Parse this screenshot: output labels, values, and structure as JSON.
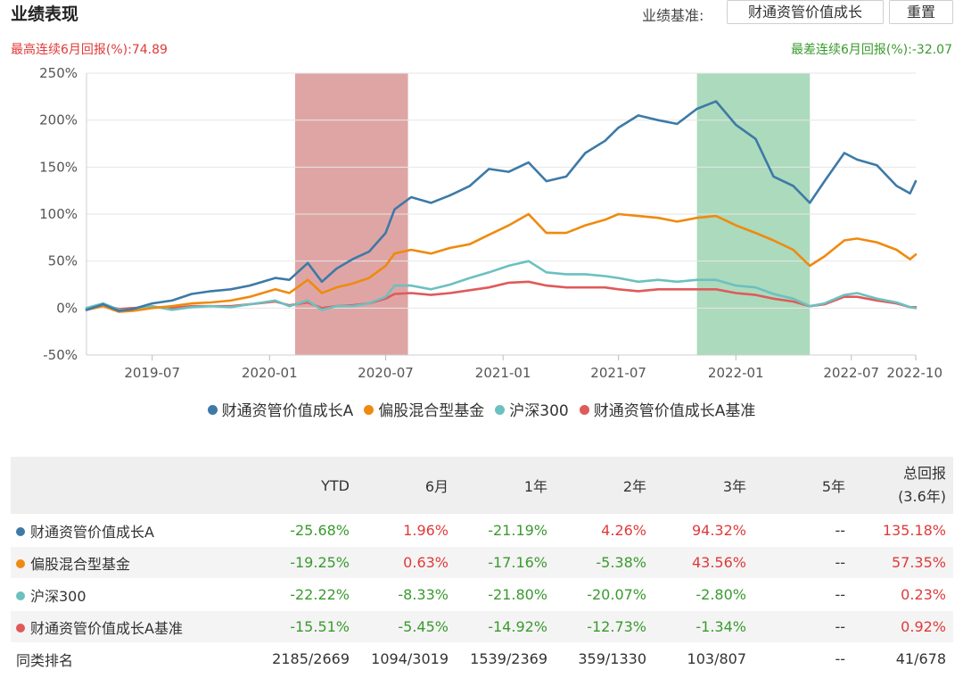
{
  "header": {
    "title": "业绩表现",
    "benchmark_label": "业绩基准:",
    "benchmark_button": "财通资管价值成长",
    "reset_button": "重置",
    "max_streak": "最高连续6月回报(%):74.89",
    "min_streak": "最差连续6月回报(%):-32.07"
  },
  "colors": {
    "fund": "#3d7aa6",
    "mixed": "#ef8a0f",
    "hs300": "#6cc0c0",
    "bench": "#e05a5a",
    "max_band": "#dda0a0",
    "min_band": "#a8d8b8"
  },
  "chart_data": {
    "type": "line",
    "xlim": [
      "2019-03-20",
      "2022-10-10"
    ],
    "x_ticks": [
      {
        "date": "2019-07-01",
        "label": "2019-07"
      },
      {
        "date": "2020-01-01",
        "label": "2020-01"
      },
      {
        "date": "2020-07-01",
        "label": "2020-07"
      },
      {
        "date": "2021-01-01",
        "label": "2021-01"
      },
      {
        "date": "2021-07-01",
        "label": "2021-07"
      },
      {
        "date": "2022-01-01",
        "label": "2022-01"
      },
      {
        "date": "2022-07-01",
        "label": "2022-07"
      },
      {
        "date": "2022-10-10",
        "label": "2022-10"
      }
    ],
    "ylim": [
      -50,
      250
    ],
    "y_ticks": [
      -50,
      0,
      50,
      100,
      150,
      200,
      250
    ],
    "y_tick_labels": [
      "-50%",
      "0%",
      "50%",
      "100%",
      "150%",
      "200%",
      "250%"
    ],
    "grid": "horizontal",
    "legend_position": "bottom",
    "bands": [
      {
        "from": "2020-02-10",
        "to": "2020-08-05",
        "type": "max"
      },
      {
        "from": "2021-11-01",
        "to": "2022-04-27",
        "type": "min"
      }
    ],
    "series": [
      {
        "name": "财通资管价值成长A",
        "color_key": "fund",
        "points": [
          [
            "2019-03-20",
            -2
          ],
          [
            "2019-04-15",
            4
          ],
          [
            "2019-05-10",
            -3
          ],
          [
            "2019-06-01",
            -1
          ],
          [
            "2019-07-01",
            5
          ],
          [
            "2019-08-01",
            8
          ],
          [
            "2019-09-01",
            15
          ],
          [
            "2019-10-01",
            18
          ],
          [
            "2019-11-01",
            20
          ],
          [
            "2019-12-01",
            24
          ],
          [
            "2020-01-10",
            32
          ],
          [
            "2020-02-01",
            30
          ],
          [
            "2020-03-01",
            48
          ],
          [
            "2020-03-23",
            28
          ],
          [
            "2020-04-15",
            42
          ],
          [
            "2020-05-10",
            52
          ],
          [
            "2020-06-05",
            60
          ],
          [
            "2020-07-01",
            80
          ],
          [
            "2020-07-15",
            105
          ],
          [
            "2020-08-10",
            118
          ],
          [
            "2020-09-10",
            112
          ],
          [
            "2020-10-10",
            120
          ],
          [
            "2020-11-10",
            130
          ],
          [
            "2020-12-10",
            148
          ],
          [
            "2021-01-10",
            145
          ],
          [
            "2021-02-10",
            155
          ],
          [
            "2021-03-10",
            135
          ],
          [
            "2021-04-10",
            140
          ],
          [
            "2021-05-10",
            165
          ],
          [
            "2021-06-10",
            178
          ],
          [
            "2021-07-01",
            192
          ],
          [
            "2021-08-01",
            205
          ],
          [
            "2021-09-01",
            200
          ],
          [
            "2021-10-01",
            196
          ],
          [
            "2021-11-01",
            212
          ],
          [
            "2021-12-01",
            220
          ],
          [
            "2022-01-01",
            195
          ],
          [
            "2022-02-01",
            180
          ],
          [
            "2022-03-01",
            140
          ],
          [
            "2022-04-01",
            130
          ],
          [
            "2022-04-27",
            112
          ],
          [
            "2022-05-20",
            135
          ],
          [
            "2022-06-20",
            165
          ],
          [
            "2022-07-10",
            158
          ],
          [
            "2022-08-10",
            152
          ],
          [
            "2022-09-10",
            130
          ],
          [
            "2022-10-01",
            122
          ],
          [
            "2022-10-10",
            135
          ]
        ]
      },
      {
        "name": "偏股混合型基金",
        "color_key": "mixed",
        "points": [
          [
            "2019-03-20",
            -2
          ],
          [
            "2019-04-15",
            2
          ],
          [
            "2019-05-10",
            -4
          ],
          [
            "2019-06-01",
            -3
          ],
          [
            "2019-07-01",
            0
          ],
          [
            "2019-08-01",
            2
          ],
          [
            "2019-09-01",
            5
          ],
          [
            "2019-10-01",
            6
          ],
          [
            "2019-11-01",
            8
          ],
          [
            "2019-12-01",
            12
          ],
          [
            "2020-01-10",
            20
          ],
          [
            "2020-02-01",
            16
          ],
          [
            "2020-03-01",
            30
          ],
          [
            "2020-03-23",
            16
          ],
          [
            "2020-04-15",
            22
          ],
          [
            "2020-05-10",
            26
          ],
          [
            "2020-06-05",
            32
          ],
          [
            "2020-07-01",
            45
          ],
          [
            "2020-07-15",
            58
          ],
          [
            "2020-08-10",
            62
          ],
          [
            "2020-09-10",
            58
          ],
          [
            "2020-10-10",
            64
          ],
          [
            "2020-11-10",
            68
          ],
          [
            "2020-12-10",
            78
          ],
          [
            "2021-01-10",
            88
          ],
          [
            "2021-02-10",
            100
          ],
          [
            "2021-03-10",
            80
          ],
          [
            "2021-04-10",
            80
          ],
          [
            "2021-05-10",
            88
          ],
          [
            "2021-06-10",
            94
          ],
          [
            "2021-07-01",
            100
          ],
          [
            "2021-08-01",
            98
          ],
          [
            "2021-09-01",
            96
          ],
          [
            "2021-10-01",
            92
          ],
          [
            "2021-11-01",
            96
          ],
          [
            "2021-12-01",
            98
          ],
          [
            "2022-01-01",
            88
          ],
          [
            "2022-02-01",
            80
          ],
          [
            "2022-03-01",
            72
          ],
          [
            "2022-04-01",
            62
          ],
          [
            "2022-04-27",
            45
          ],
          [
            "2022-05-20",
            55
          ],
          [
            "2022-06-20",
            72
          ],
          [
            "2022-07-10",
            74
          ],
          [
            "2022-08-10",
            70
          ],
          [
            "2022-09-10",
            62
          ],
          [
            "2022-10-01",
            52
          ],
          [
            "2022-10-10",
            57
          ]
        ]
      },
      {
        "name": "沪深300",
        "color_key": "hs300",
        "points": [
          [
            "2019-03-20",
            0
          ],
          [
            "2019-04-15",
            5
          ],
          [
            "2019-05-10",
            -2
          ],
          [
            "2019-06-01",
            -2
          ],
          [
            "2019-07-01",
            2
          ],
          [
            "2019-08-01",
            -2
          ],
          [
            "2019-09-01",
            1
          ],
          [
            "2019-10-01",
            2
          ],
          [
            "2019-11-01",
            1
          ],
          [
            "2019-12-01",
            4
          ],
          [
            "2020-01-10",
            8
          ],
          [
            "2020-02-01",
            2
          ],
          [
            "2020-03-01",
            8
          ],
          [
            "2020-03-23",
            -2
          ],
          [
            "2020-04-15",
            2
          ],
          [
            "2020-05-10",
            2
          ],
          [
            "2020-06-05",
            5
          ],
          [
            "2020-07-01",
            12
          ],
          [
            "2020-07-15",
            24
          ],
          [
            "2020-08-10",
            24
          ],
          [
            "2020-09-10",
            20
          ],
          [
            "2020-10-10",
            25
          ],
          [
            "2020-11-10",
            32
          ],
          [
            "2020-12-10",
            38
          ],
          [
            "2021-01-10",
            45
          ],
          [
            "2021-02-10",
            50
          ],
          [
            "2021-03-10",
            38
          ],
          [
            "2021-04-10",
            36
          ],
          [
            "2021-05-10",
            36
          ],
          [
            "2021-06-10",
            34
          ],
          [
            "2021-07-01",
            32
          ],
          [
            "2021-08-01",
            28
          ],
          [
            "2021-09-01",
            30
          ],
          [
            "2021-10-01",
            28
          ],
          [
            "2021-11-01",
            30
          ],
          [
            "2021-12-01",
            30
          ],
          [
            "2022-01-01",
            24
          ],
          [
            "2022-02-01",
            22
          ],
          [
            "2022-03-01",
            15
          ],
          [
            "2022-04-01",
            10
          ],
          [
            "2022-04-27",
            2
          ],
          [
            "2022-05-20",
            5
          ],
          [
            "2022-06-20",
            14
          ],
          [
            "2022-07-10",
            16
          ],
          [
            "2022-08-10",
            10
          ],
          [
            "2022-09-10",
            6
          ],
          [
            "2022-10-01",
            1
          ],
          [
            "2022-10-10",
            0
          ]
        ]
      },
      {
        "name": "财通资管价值成长A基准",
        "color_key": "bench",
        "points": [
          [
            "2019-03-20",
            0
          ],
          [
            "2019-04-15",
            3
          ],
          [
            "2019-05-10",
            -1
          ],
          [
            "2019-06-01",
            0
          ],
          [
            "2019-07-01",
            1
          ],
          [
            "2019-08-01",
            0
          ],
          [
            "2019-09-01",
            2
          ],
          [
            "2019-10-01",
            2
          ],
          [
            "2019-11-01",
            2
          ],
          [
            "2019-12-01",
            4
          ],
          [
            "2020-01-10",
            7
          ],
          [
            "2020-02-01",
            3
          ],
          [
            "2020-03-01",
            6
          ],
          [
            "2020-03-23",
            0
          ],
          [
            "2020-04-15",
            2
          ],
          [
            "2020-05-10",
            3
          ],
          [
            "2020-06-05",
            5
          ],
          [
            "2020-07-01",
            10
          ],
          [
            "2020-07-15",
            15
          ],
          [
            "2020-08-10",
            16
          ],
          [
            "2020-09-10",
            14
          ],
          [
            "2020-10-10",
            16
          ],
          [
            "2020-11-10",
            19
          ],
          [
            "2020-12-10",
            22
          ],
          [
            "2021-01-10",
            27
          ],
          [
            "2021-02-10",
            28
          ],
          [
            "2021-03-10",
            24
          ],
          [
            "2021-04-10",
            22
          ],
          [
            "2021-05-10",
            22
          ],
          [
            "2021-06-10",
            22
          ],
          [
            "2021-07-01",
            20
          ],
          [
            "2021-08-01",
            18
          ],
          [
            "2021-09-01",
            20
          ],
          [
            "2021-10-01",
            20
          ],
          [
            "2021-11-01",
            20
          ],
          [
            "2021-12-01",
            20
          ],
          [
            "2022-01-01",
            16
          ],
          [
            "2022-02-01",
            14
          ],
          [
            "2022-03-01",
            10
          ],
          [
            "2022-04-01",
            7
          ],
          [
            "2022-04-27",
            2
          ],
          [
            "2022-05-20",
            4
          ],
          [
            "2022-06-20",
            12
          ],
          [
            "2022-07-10",
            12
          ],
          [
            "2022-08-10",
            8
          ],
          [
            "2022-09-10",
            5
          ],
          [
            "2022-10-01",
            1
          ],
          [
            "2022-10-10",
            1
          ]
        ]
      }
    ]
  },
  "table": {
    "headers": [
      "",
      "YTD",
      "6月",
      "1年",
      "2年",
      "3年",
      "5年",
      "总回报",
      "(3.6年)"
    ],
    "rows": [
      {
        "name": "财通资管价值成长A",
        "color_key": "fund",
        "values": [
          "-25.68%",
          "1.96%",
          "-21.19%",
          "4.26%",
          "94.32%",
          "--",
          "135.18%"
        ]
      },
      {
        "name": "偏股混合型基金",
        "color_key": "mixed",
        "values": [
          "-19.25%",
          "0.63%",
          "-17.16%",
          "-5.38%",
          "43.56%",
          "--",
          "57.35%"
        ]
      },
      {
        "name": "沪深300",
        "color_key": "hs300",
        "values": [
          "-22.22%",
          "-8.33%",
          "-21.80%",
          "-20.07%",
          "-2.80%",
          "--",
          "0.23%"
        ]
      },
      {
        "name": "财通资管价值成长A基准",
        "color_key": "bench",
        "values": [
          "-15.51%",
          "-5.45%",
          "-14.92%",
          "-12.73%",
          "-1.34%",
          "--",
          "0.92%"
        ]
      },
      {
        "name": "同类排名",
        "color_key": "",
        "values": [
          "2185/2669",
          "1094/3019",
          "1539/2369",
          "359/1330",
          "103/807",
          "--",
          "41/678"
        ]
      }
    ]
  }
}
